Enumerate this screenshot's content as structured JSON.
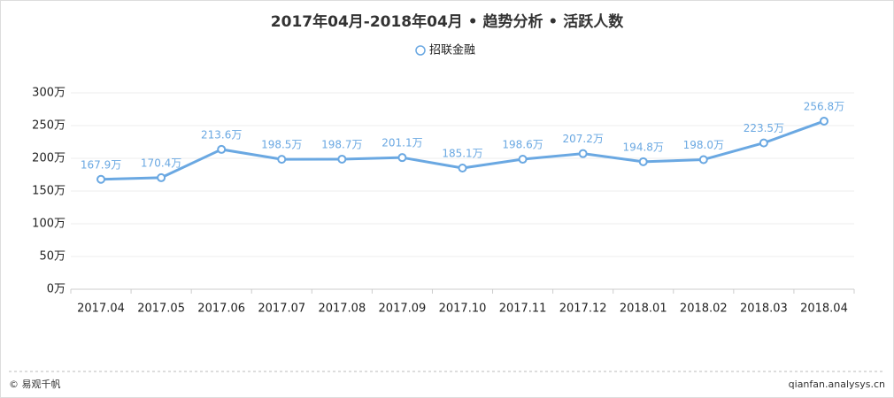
{
  "chart_data": {
    "type": "line",
    "title": "2017年04月-2018年04月 • 趋势分析 • 活跃人数",
    "categories": [
      "2017.04",
      "2017.05",
      "2017.06",
      "2017.07",
      "2017.08",
      "2017.09",
      "2017.10",
      "2017.11",
      "2017.12",
      "2018.01",
      "2018.02",
      "2018.03",
      "2018.04"
    ],
    "series": [
      {
        "name": "招联金融",
        "color": "#6aa8e2",
        "values": [
          167.9,
          170.4,
          213.6,
          198.5,
          198.7,
          201.1,
          185.1,
          198.6,
          207.2,
          194.8,
          198.0,
          223.5,
          256.8
        ],
        "value_labels": [
          "167.9万",
          "170.4万",
          "213.6万",
          "198.5万",
          "198.7万",
          "201.1万",
          "185.1万",
          "198.6万",
          "207.2万",
          "194.8万",
          "198.0万",
          "223.5万",
          "256.8万"
        ]
      }
    ],
    "ylim": [
      0,
      300
    ],
    "yticks": [
      {
        "value": 0,
        "label": "0万"
      },
      {
        "value": 50,
        "label": "50万"
      },
      {
        "value": 100,
        "label": "100万"
      },
      {
        "value": 150,
        "label": "150万"
      },
      {
        "value": 200,
        "label": "200万"
      },
      {
        "value": 250,
        "label": "250万"
      },
      {
        "value": 300,
        "label": "300万"
      }
    ],
    "grid": true
  },
  "footer": {
    "source": "© 易观千帆",
    "website": "qianfan.analysys.cn"
  }
}
